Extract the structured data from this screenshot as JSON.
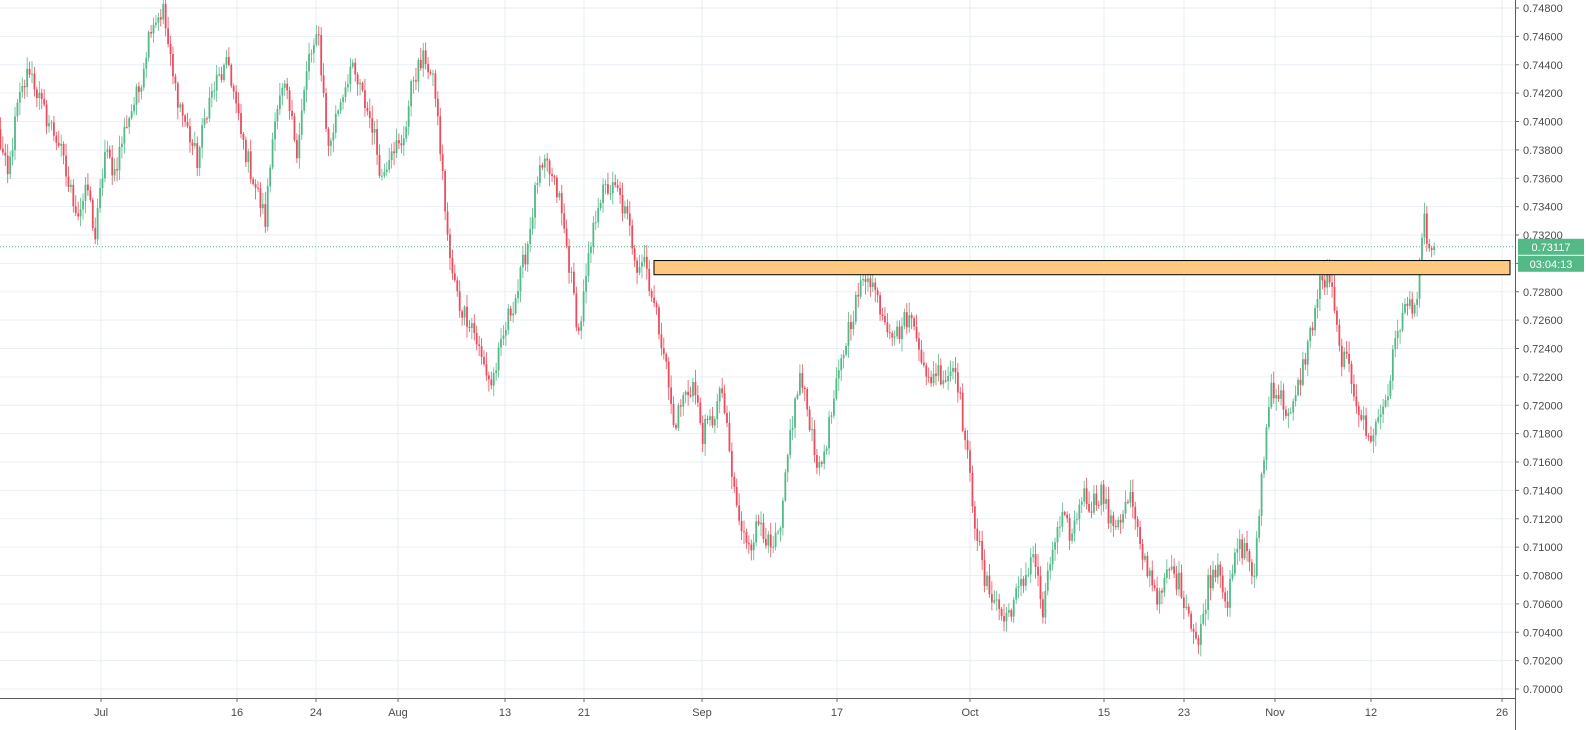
{
  "chart_data": {
    "type": "candlestick",
    "symbol": "",
    "x_axis_labels": [
      "Jul",
      "16",
      "24",
      "Aug",
      "13",
      "21",
      "Sep",
      "17",
      "Oct",
      "15",
      "23",
      "Nov",
      "12",
      "26"
    ],
    "y_axis_labels": [
      "0.74800",
      "0.74600",
      "0.74400",
      "0.74200",
      "0.74000",
      "0.73800",
      "0.73600",
      "0.73400",
      "0.73200",
      "0.73000",
      "0.72800",
      "0.72600",
      "0.72400",
      "0.72200",
      "0.72000",
      "0.71800",
      "0.71600",
      "0.71400",
      "0.71200",
      "0.71000",
      "0.70800",
      "0.70600",
      "0.70400",
      "0.70200",
      "0.70000"
    ],
    "ylim": [
      0.7,
      0.748
    ],
    "current_price": "0.73117",
    "countdown": "03:04:13",
    "resistance_zone": {
      "price_high": 0.7302,
      "price_low": 0.7292
    },
    "colors": {
      "up": "#53b987",
      "down": "#eb4d5c",
      "grid": "#e9eff5",
      "zone_fill": "#ffca80",
      "zone_stroke": "#000000",
      "price_line": "#53b987"
    },
    "waypoints": [
      [
        0,
        0.7392
      ],
      [
        4,
        0.736
      ],
      [
        8,
        0.741
      ],
      [
        13,
        0.7438
      ],
      [
        18,
        0.741
      ],
      [
        25,
        0.7385
      ],
      [
        29,
        0.7355
      ],
      [
        33,
        0.7336
      ],
      [
        37,
        0.7352
      ],
      [
        40,
        0.7318
      ],
      [
        44,
        0.7378
      ],
      [
        48,
        0.7365
      ],
      [
        53,
        0.74
      ],
      [
        58,
        0.7422
      ],
      [
        63,
        0.747
      ],
      [
        68,
        0.7478
      ],
      [
        72,
        0.743
      ],
      [
        76,
        0.7405
      ],
      [
        82,
        0.7372
      ],
      [
        86,
        0.741
      ],
      [
        90,
        0.7428
      ],
      [
        95,
        0.744
      ],
      [
        100,
        0.739
      ],
      [
        105,
        0.736
      ],
      [
        110,
        0.733
      ],
      [
        114,
        0.7408
      ],
      [
        118,
        0.7422
      ],
      [
        123,
        0.7382
      ],
      [
        128,
        0.7445
      ],
      [
        132,
        0.7458
      ],
      [
        136,
        0.738
      ],
      [
        140,
        0.741
      ],
      [
        145,
        0.7438
      ],
      [
        149,
        0.7422
      ],
      [
        154,
        0.7398
      ],
      [
        158,
        0.736
      ],
      [
        162,
        0.7385
      ],
      [
        166,
        0.738
      ],
      [
        171,
        0.7432
      ],
      [
        176,
        0.7445
      ],
      [
        180,
        0.742
      ],
      [
        183,
        0.736
      ],
      [
        186,
        0.73
      ],
      [
        190,
        0.727
      ],
      [
        195,
        0.7258
      ],
      [
        199,
        0.7232
      ],
      [
        203,
        0.7215
      ],
      [
        207,
        0.724
      ],
      [
        210,
        0.7262
      ],
      [
        214,
        0.7282
      ],
      [
        218,
        0.7315
      ],
      [
        222,
        0.736
      ],
      [
        226,
        0.7368
      ],
      [
        231,
        0.7345
      ],
      [
        235,
        0.73
      ],
      [
        239,
        0.725
      ],
      [
        243,
        0.73
      ],
      [
        247,
        0.7345
      ],
      [
        251,
        0.7353
      ],
      [
        255,
        0.735
      ],
      [
        259,
        0.733
      ],
      [
        263,
        0.73
      ],
      [
        266,
        0.7305
      ],
      [
        270,
        0.727
      ],
      [
        274,
        0.724
      ],
      [
        278,
        0.7185
      ],
      [
        282,
        0.7205
      ],
      [
        286,
        0.7215
      ],
      [
        290,
        0.718
      ],
      [
        294,
        0.719
      ],
      [
        298,
        0.721
      ],
      [
        302,
        0.715
      ],
      [
        306,
        0.7108
      ],
      [
        310,
        0.7105
      ],
      [
        314,
        0.712
      ],
      [
        318,
        0.7095
      ],
      [
        322,
        0.711
      ],
      [
        326,
        0.718
      ],
      [
        330,
        0.722
      ],
      [
        334,
        0.719
      ],
      [
        338,
        0.7152
      ],
      [
        342,
        0.7185
      ],
      [
        346,
        0.722
      ],
      [
        350,
        0.7255
      ],
      [
        354,
        0.7278
      ],
      [
        358,
        0.7295
      ],
      [
        362,
        0.7275
      ],
      [
        366,
        0.7258
      ],
      [
        370,
        0.725
      ],
      [
        374,
        0.7262
      ],
      [
        378,
        0.7255
      ],
      [
        382,
        0.7215
      ],
      [
        386,
        0.7225
      ],
      [
        390,
        0.722
      ],
      [
        394,
        0.723
      ],
      [
        398,
        0.7175
      ],
      [
        402,
        0.712
      ],
      [
        406,
        0.7075
      ],
      [
        410,
        0.7065
      ],
      [
        414,
        0.7048
      ],
      [
        418,
        0.7062
      ],
      [
        422,
        0.7075
      ],
      [
        426,
        0.7098
      ],
      [
        430,
        0.7052
      ],
      [
        434,
        0.71
      ],
      [
        438,
        0.7118
      ],
      [
        442,
        0.7108
      ],
      [
        446,
        0.7138
      ],
      [
        450,
        0.713
      ],
      [
        454,
        0.714
      ],
      [
        458,
        0.7115
      ],
      [
        462,
        0.7122
      ],
      [
        466,
        0.7135
      ],
      [
        470,
        0.7098
      ],
      [
        474,
        0.7082
      ],
      [
        478,
        0.7062
      ],
      [
        482,
        0.7085
      ],
      [
        486,
        0.7075
      ],
      [
        490,
        0.7055
      ],
      [
        494,
        0.703
      ],
      [
        498,
        0.7075
      ],
      [
        502,
        0.709
      ],
      [
        506,
        0.706
      ],
      [
        510,
        0.71
      ],
      [
        514,
        0.7098
      ],
      [
        517,
        0.7075
      ],
      [
        520,
        0.715
      ],
      [
        524,
        0.7215
      ],
      [
        528,
        0.7205
      ],
      [
        532,
        0.719
      ],
      [
        536,
        0.722
      ],
      [
        540,
        0.725
      ],
      [
        544,
        0.7285
      ],
      [
        548,
        0.729
      ],
      [
        552,
        0.7238
      ],
      [
        556,
        0.7225
      ],
      [
        560,
        0.7198
      ],
      [
        564,
        0.7175
      ],
      [
        568,
        0.719
      ],
      [
        572,
        0.721
      ],
      [
        576,
        0.7255
      ],
      [
        580,
        0.727
      ],
      [
        584,
        0.7275
      ],
      [
        587,
        0.733
      ],
      [
        589,
        0.7308
      ],
      [
        591,
        0.7312
      ]
    ]
  }
}
